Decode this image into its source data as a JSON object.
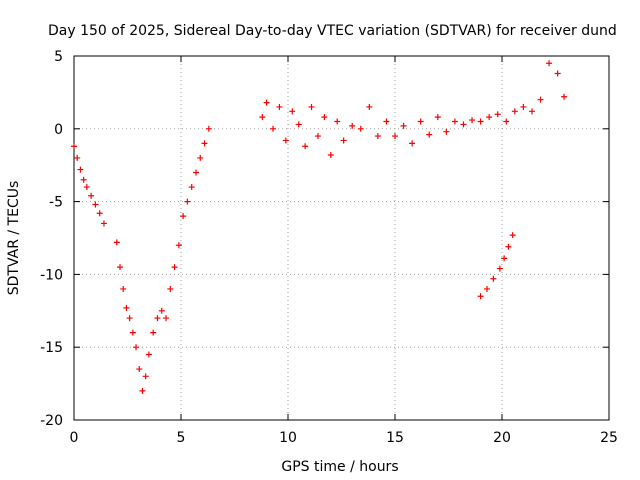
{
  "chart_data": {
    "type": "scatter",
    "title": "Day 150 of 2025, Sidereal Day-to-day VTEC variation (SDTVAR) for receiver dund",
    "xlabel": "GPS time / hours",
    "ylabel": "SDTVAR / TECUs",
    "xlim": [
      0,
      25
    ],
    "ylim": [
      -20,
      5
    ],
    "xticks": [
      0,
      5,
      10,
      15,
      20,
      25
    ],
    "yticks": [
      5,
      0,
      -5,
      -10,
      -15,
      -20
    ],
    "grid": true,
    "marker": "plus",
    "color": "#ff0000",
    "series": [
      {
        "name": "SDTVAR",
        "x": [
          0.0,
          0.15,
          0.3,
          0.45,
          0.6,
          0.8,
          1.0,
          1.2,
          1.4,
          2.0,
          2.15,
          2.3,
          2.45,
          2.6,
          2.75,
          2.9,
          3.05,
          3.2,
          3.35,
          3.5,
          3.7,
          3.9,
          4.1,
          4.3,
          4.5,
          4.7,
          4.9,
          5.1,
          5.3,
          5.5,
          5.7,
          5.9,
          6.1,
          6.3,
          8.8,
          9.0,
          9.3,
          9.6,
          9.9,
          10.2,
          10.5,
          10.8,
          11.1,
          11.4,
          11.7,
          12.0,
          12.3,
          12.6,
          13.0,
          13.4,
          13.8,
          14.2,
          14.6,
          15.0,
          15.4,
          15.8,
          16.2,
          16.6,
          17.0,
          17.4,
          17.8,
          18.2,
          18.6,
          19.0,
          19.4,
          19.8,
          20.2,
          20.6,
          21.0,
          21.4,
          21.8,
          22.2,
          22.6,
          22.9,
          19.0,
          19.3,
          19.6,
          19.9,
          20.1,
          20.3,
          20.5
        ],
        "y": [
          -1.2,
          -2.0,
          -2.8,
          -3.5,
          -4.0,
          -4.6,
          -5.2,
          -5.8,
          -6.5,
          -7.8,
          -9.5,
          -11.0,
          -12.3,
          -13.0,
          -14.0,
          -15.0,
          -16.5,
          -18.0,
          -17.0,
          -15.5,
          -14.0,
          -13.0,
          -12.5,
          -13.0,
          -11.0,
          -9.5,
          -8.0,
          -6.0,
          -5.0,
          -4.0,
          -3.0,
          -2.0,
          -1.0,
          0.0,
          0.8,
          1.8,
          0.0,
          1.5,
          -0.8,
          1.2,
          0.3,
          -1.2,
          1.5,
          -0.5,
          0.8,
          -1.8,
          0.5,
          -0.8,
          0.2,
          0.0,
          1.5,
          -0.5,
          0.5,
          -0.5,
          0.2,
          -1.0,
          0.5,
          -0.4,
          0.8,
          -0.2,
          0.5,
          0.3,
          0.6,
          0.5,
          0.8,
          1.0,
          0.5,
          1.2,
          1.5,
          1.2,
          2.0,
          4.5,
          3.8,
          2.2,
          -11.5,
          -11.0,
          -10.3,
          -9.6,
          -8.9,
          -8.1,
          -7.3
        ]
      }
    ]
  }
}
